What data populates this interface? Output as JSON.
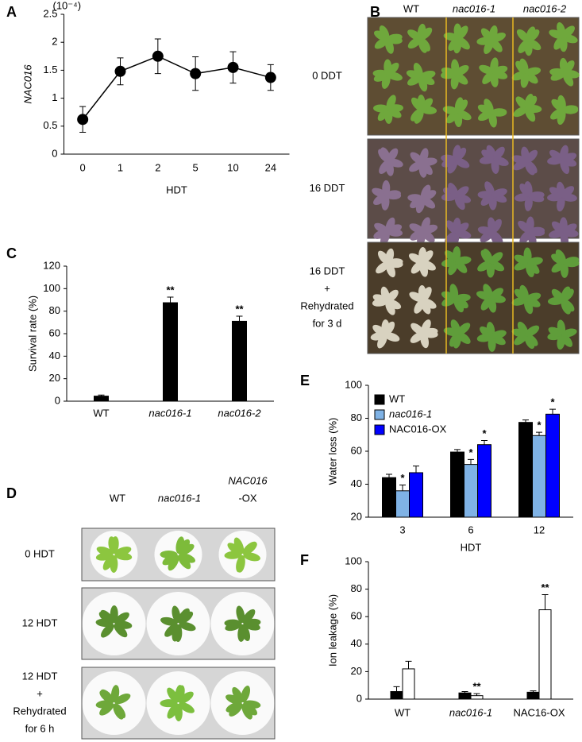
{
  "panel_labels": [
    "A",
    "B",
    "C",
    "D",
    "E",
    "F"
  ],
  "chart_data": [
    {
      "type": "line",
      "scale_note": "(10⁻⁴)",
      "y_label": "NAC016",
      "x_label": "HDT",
      "categories": [
        "0",
        "1",
        "2",
        "5",
        "10",
        "24"
      ],
      "values": [
        0.62,
        1.48,
        1.75,
        1.44,
        1.55,
        1.37
      ],
      "errors": [
        0.23,
        0.24,
        0.31,
        0.3,
        0.28,
        0.23
      ],
      "color": "#000000",
      "ylim": [
        0,
        2.5
      ],
      "yticks": [
        0,
        0.5,
        1,
        1.5,
        2,
        2.5
      ]
    },
    {
      "type": "bar",
      "y_label": "Survival rate (%)",
      "categories": [
        "WT",
        "nac016-1",
        "nac016-2"
      ],
      "values": [
        4.5,
        87.5,
        71
      ],
      "errors": [
        1,
        5,
        4.5
      ],
      "significance": [
        null,
        "**",
        "**"
      ],
      "color": "#000000",
      "ylim": [
        0,
        120
      ],
      "yticks": [
        0,
        20,
        40,
        60,
        80,
        100,
        120
      ]
    },
    {
      "type": "bar",
      "y_label": "Water loss (%)",
      "x_label": "HDT",
      "categories": [
        "3",
        "6",
        "12"
      ],
      "series": [
        {
          "name": "WT",
          "color": "#000000",
          "values": [
            44,
            59.5,
            77.5
          ],
          "errors": [
            2,
            1.5,
            1.5
          ],
          "significance": [
            null,
            null,
            null
          ]
        },
        {
          "name": "nac016-1",
          "color": "#7fb2e5",
          "values": [
            36,
            52,
            69.5
          ],
          "errors": [
            3.5,
            3,
            2
          ],
          "significance": [
            "*",
            "*",
            "*"
          ]
        },
        {
          "name": "NAC016-OX",
          "color": "#0000ff",
          "values": [
            47,
            64,
            82.5
          ],
          "errors": [
            4,
            2.5,
            3
          ],
          "significance": [
            null,
            "*",
            "*"
          ]
        }
      ],
      "legend": "top-left",
      "ylim": [
        20,
        100
      ],
      "yticks": [
        20,
        40,
        60,
        80,
        100
      ]
    },
    {
      "type": "bar",
      "y_label": "Ion leakage (%)",
      "categories": [
        "WT",
        "nac016-1",
        "NAC16-OX"
      ],
      "series": [
        {
          "color": "#000000",
          "values": [
            5.5,
            4.5,
            5
          ],
          "errors": [
            3.5,
            1,
            1
          ],
          "significance": [
            null,
            null,
            null
          ]
        },
        {
          "color": "#ffffff",
          "values": [
            22,
            2.5,
            65
          ],
          "errors": [
            5.5,
            1.5,
            11
          ],
          "significance": [
            null,
            "**",
            "**"
          ]
        }
      ],
      "ylim": [
        0,
        100
      ],
      "yticks": [
        0,
        20,
        40,
        60,
        80,
        100
      ]
    }
  ],
  "photo_panels": [
    {
      "columns": [
        [
          "WT"
        ],
        [
          "nac016-1"
        ],
        [
          "nac016-2"
        ]
      ],
      "rows": [
        [
          "0 DDT"
        ],
        [
          "16 DDT"
        ],
        [
          "16 DDT",
          "+",
          "Rehydrated",
          "for 3 d"
        ]
      ]
    },
    {
      "columns": [
        [
          "WT"
        ],
        [
          "nac016-1"
        ],
        [
          "NAC016",
          "-OX"
        ]
      ],
      "rows": [
        [
          "0 HDT"
        ],
        [
          "12 HDT"
        ],
        [
          "12 HDT",
          "+",
          "Rehydrated",
          "for 6 h"
        ]
      ]
    }
  ]
}
